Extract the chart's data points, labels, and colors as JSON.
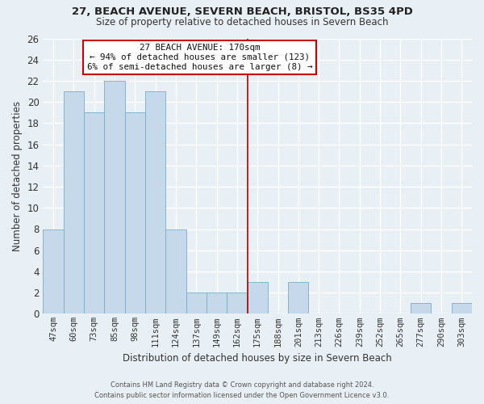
{
  "title": "27, BEACH AVENUE, SEVERN BEACH, BRISTOL, BS35 4PD",
  "subtitle": "Size of property relative to detached houses in Severn Beach",
  "xlabel": "Distribution of detached houses by size in Severn Beach",
  "ylabel": "Number of detached properties",
  "bar_labels": [
    "47sqm",
    "60sqm",
    "73sqm",
    "85sqm",
    "98sqm",
    "111sqm",
    "124sqm",
    "137sqm",
    "149sqm",
    "162sqm",
    "175sqm",
    "188sqm",
    "201sqm",
    "213sqm",
    "226sqm",
    "239sqm",
    "252sqm",
    "265sqm",
    "277sqm",
    "290sqm",
    "303sqm"
  ],
  "bar_values": [
    8,
    21,
    19,
    22,
    19,
    21,
    8,
    2,
    2,
    2,
    3,
    0,
    3,
    0,
    0,
    0,
    0,
    0,
    1,
    0,
    1
  ],
  "vline_index": 10,
  "bar_color": "#c5d9ea",
  "bar_edgecolor": "#7aacc8",
  "background_color": "#e8eff5",
  "grid_color": "#ffffff",
  "annotation_title": "27 BEACH AVENUE: 170sqm",
  "annotation_line2": "← 94% of detached houses are smaller (123)",
  "annotation_line3": "6% of semi-detached houses are larger (8) →",
  "annotation_box_facecolor": "#ffffff",
  "annotation_box_edgecolor": "#cc0000",
  "vline_color": "#aa0000",
  "footer_line1": "Contains HM Land Registry data © Crown copyright and database right 2024.",
  "footer_line2": "Contains public sector information licensed under the Open Government Licence v3.0.",
  "ylim": [
    0,
    26
  ],
  "yticks": [
    0,
    2,
    4,
    6,
    8,
    10,
    12,
    14,
    16,
    18,
    20,
    22,
    24,
    26
  ]
}
